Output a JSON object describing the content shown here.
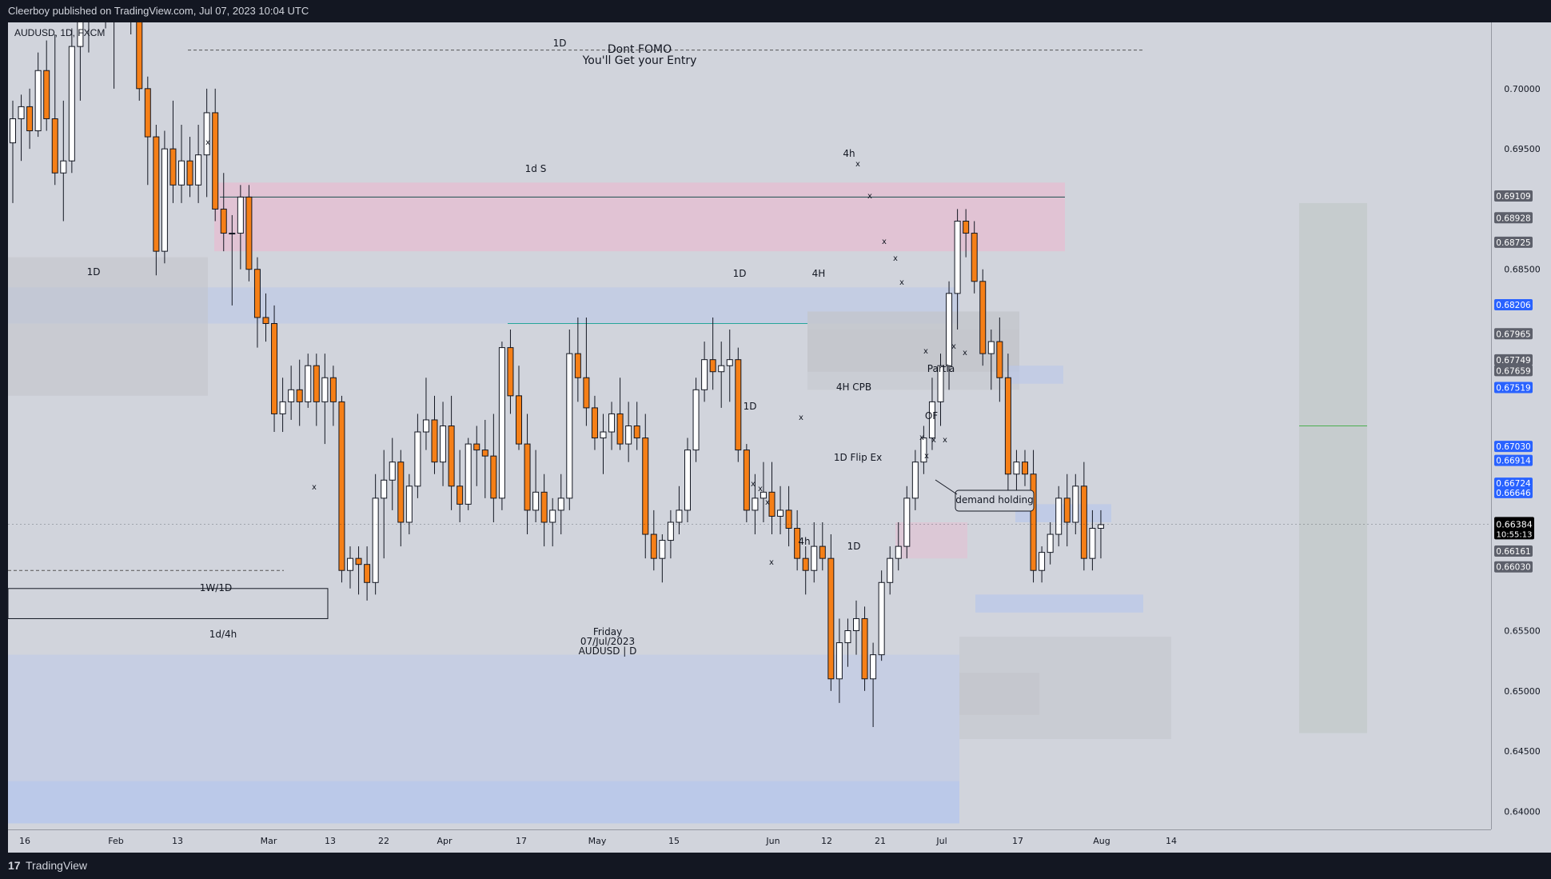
{
  "header": {
    "published": "Cleerboy published on TradingView.com, Jul 07, 2023 10:04 UTC"
  },
  "symbol_line": "AUDUSD, 1D, FXCM",
  "footer": {
    "logo": "17",
    "brand": "TradingView"
  },
  "colors": {
    "background": "#d1d4dc",
    "bull": "#ffffff",
    "bear": "#f57f17",
    "wick": "#131722",
    "supply_zone": "#e8bcd0",
    "demand_zone": "#b9c7ea",
    "gray_zone": "#c3c5cc",
    "current_price": "#000000",
    "blue_label": "#2962ff",
    "dark_label": "#5d606b"
  },
  "annotations": {
    "dont_fomo": "Dont FOMO",
    "entry": "You'll Get your Entry",
    "d1_top": "1D",
    "supply_1ds": "1d S",
    "h4_top": "4h",
    "d1_left": "1D",
    "d1_mid": "1D",
    "h4_mid": "4H",
    "h4_cpb": "4H CPB",
    "d1_may": "1D",
    "flip_ex": "1D Flip Ex",
    "demand_holding": "demand holding",
    "h4_low": "4h",
    "d1_low": "1D",
    "w1d1": "1W/1D",
    "d1h4": "1d/4h",
    "partial": "Partia",
    "of": "OF",
    "x": "x",
    "date_tooltip_line1": "Friday",
    "date_tooltip_line2": "07/Jul/2023",
    "date_tooltip_line3": "AUDUSD | D"
  },
  "price_scale": {
    "ticks": [
      "0.70000",
      "0.69500",
      "0.68500",
      "0.65500",
      "0.65000",
      "0.64500",
      "0.64000"
    ],
    "labels": [
      {
        "value": "0.69109",
        "style": "dark"
      },
      {
        "value": "0.68928",
        "style": "dark"
      },
      {
        "value": "0.68725",
        "style": "dark"
      },
      {
        "value": "0.68206",
        "style": "blue"
      },
      {
        "value": "0.67965",
        "style": "dark"
      },
      {
        "value": "0.67749",
        "style": "dark"
      },
      {
        "value": "0.67659",
        "style": "dark"
      },
      {
        "value": "0.67519",
        "style": "blue"
      },
      {
        "value": "0.67030",
        "style": "blue"
      },
      {
        "value": "0.66914",
        "style": "blue"
      },
      {
        "value": "0.66724",
        "style": "blue"
      },
      {
        "value": "0.66646",
        "style": "blue"
      },
      {
        "value": "0.66161",
        "style": "dark"
      },
      {
        "value": "0.66030",
        "style": "dark"
      }
    ],
    "current_price": "0.66384",
    "countdown": "10:55:13"
  },
  "time_scale": {
    "labels": [
      "16",
      "Feb",
      "13",
      "Mar",
      "13",
      "22",
      "Apr",
      "17",
      "May",
      "15",
      "Jun",
      "12",
      "21",
      "Jul",
      "17",
      "Aug",
      "14"
    ]
  },
  "chart_data": {
    "type": "candlestick",
    "symbol": "AUDUSD",
    "interval": "1D",
    "ylim": [
      0.6385,
      0.7055
    ],
    "candles": [
      [
        0.6955,
        0.699,
        0.6905,
        0.6975
      ],
      [
        0.6975,
        0.6995,
        0.694,
        0.6985
      ],
      [
        0.6985,
        0.7,
        0.695,
        0.6965
      ],
      [
        0.6965,
        0.703,
        0.696,
        0.7015
      ],
      [
        0.7015,
        0.704,
        0.6965,
        0.6975
      ],
      [
        0.6975,
        0.7045,
        0.692,
        0.693
      ],
      [
        0.693,
        0.699,
        0.689,
        0.694
      ],
      [
        0.694,
        0.705,
        0.693,
        0.7035
      ],
      [
        0.7035,
        0.708,
        0.699,
        0.7065
      ],
      [
        0.7065,
        0.712,
        0.703,
        0.7085
      ],
      [
        0.7085,
        0.713,
        0.707,
        0.7115
      ],
      [
        0.7115,
        0.714,
        0.705,
        0.707
      ],
      [
        0.707,
        0.711,
        0.7,
        0.708
      ],
      [
        0.708,
        0.715,
        0.706,
        0.713
      ],
      [
        0.713,
        0.7155,
        0.7045,
        0.7085
      ],
      [
        0.7085,
        0.709,
        0.699,
        0.7
      ],
      [
        0.7,
        0.701,
        0.692,
        0.696
      ],
      [
        0.696,
        0.697,
        0.6845,
        0.6865
      ],
      [
        0.6865,
        0.6965,
        0.6855,
        0.695
      ],
      [
        0.695,
        0.699,
        0.6905,
        0.692
      ],
      [
        0.692,
        0.697,
        0.6905,
        0.694
      ],
      [
        0.694,
        0.696,
        0.691,
        0.692
      ],
      [
        0.692,
        0.697,
        0.6905,
        0.6945
      ],
      [
        0.6945,
        0.7,
        0.691,
        0.698
      ],
      [
        0.698,
        0.7,
        0.689,
        0.69
      ],
      [
        0.69,
        0.693,
        0.6865,
        0.688
      ],
      [
        0.688,
        0.6895,
        0.682,
        0.688
      ],
      [
        0.688,
        0.692,
        0.685,
        0.691
      ],
      [
        0.691,
        0.692,
        0.684,
        0.685
      ],
      [
        0.685,
        0.686,
        0.6785,
        0.681
      ],
      [
        0.681,
        0.683,
        0.679,
        0.6805
      ],
      [
        0.6805,
        0.682,
        0.6715,
        0.673
      ],
      [
        0.673,
        0.676,
        0.6715,
        0.674
      ],
      [
        0.674,
        0.677,
        0.6725,
        0.675
      ],
      [
        0.675,
        0.6775,
        0.672,
        0.674
      ],
      [
        0.674,
        0.678,
        0.6735,
        0.677
      ],
      [
        0.677,
        0.678,
        0.672,
        0.674
      ],
      [
        0.674,
        0.678,
        0.6705,
        0.676
      ],
      [
        0.676,
        0.677,
        0.672,
        0.674
      ],
      [
        0.674,
        0.6745,
        0.659,
        0.66
      ],
      [
        0.66,
        0.662,
        0.6585,
        0.661
      ],
      [
        0.661,
        0.662,
        0.658,
        0.6605
      ],
      [
        0.6605,
        0.662,
        0.6575,
        0.659
      ],
      [
        0.659,
        0.668,
        0.658,
        0.666
      ],
      [
        0.666,
        0.67,
        0.661,
        0.6675
      ],
      [
        0.6675,
        0.671,
        0.665,
        0.669
      ],
      [
        0.669,
        0.67,
        0.662,
        0.664
      ],
      [
        0.664,
        0.668,
        0.663,
        0.667
      ],
      [
        0.667,
        0.673,
        0.666,
        0.6715
      ],
      [
        0.6715,
        0.676,
        0.67,
        0.6725
      ],
      [
        0.6725,
        0.6745,
        0.668,
        0.669
      ],
      [
        0.669,
        0.674,
        0.667,
        0.672
      ],
      [
        0.672,
        0.6745,
        0.665,
        0.667
      ],
      [
        0.667,
        0.67,
        0.664,
        0.6655
      ],
      [
        0.6655,
        0.671,
        0.665,
        0.6705
      ],
      [
        0.6705,
        0.672,
        0.667,
        0.67
      ],
      [
        0.67,
        0.6725,
        0.666,
        0.6695
      ],
      [
        0.6695,
        0.673,
        0.664,
        0.666
      ],
      [
        0.666,
        0.679,
        0.665,
        0.6785
      ],
      [
        0.6785,
        0.68,
        0.673,
        0.6745
      ],
      [
        0.6745,
        0.677,
        0.67,
        0.6705
      ],
      [
        0.6705,
        0.673,
        0.663,
        0.665
      ],
      [
        0.665,
        0.67,
        0.664,
        0.6665
      ],
      [
        0.6665,
        0.668,
        0.662,
        0.664
      ],
      [
        0.664,
        0.666,
        0.662,
        0.665
      ],
      [
        0.665,
        0.668,
        0.663,
        0.666
      ],
      [
        0.666,
        0.68,
        0.665,
        0.678
      ],
      [
        0.678,
        0.681,
        0.674,
        0.676
      ],
      [
        0.676,
        0.681,
        0.672,
        0.6735
      ],
      [
        0.6735,
        0.6745,
        0.67,
        0.671
      ],
      [
        0.671,
        0.673,
        0.668,
        0.6715
      ],
      [
        0.6715,
        0.674,
        0.67,
        0.673
      ],
      [
        0.673,
        0.676,
        0.67,
        0.6705
      ],
      [
        0.6705,
        0.674,
        0.669,
        0.672
      ],
      [
        0.672,
        0.674,
        0.67,
        0.671
      ],
      [
        0.671,
        0.673,
        0.661,
        0.663
      ],
      [
        0.663,
        0.665,
        0.66,
        0.661
      ],
      [
        0.661,
        0.663,
        0.659,
        0.6625
      ],
      [
        0.6625,
        0.665,
        0.661,
        0.664
      ],
      [
        0.664,
        0.667,
        0.663,
        0.665
      ],
      [
        0.665,
        0.671,
        0.664,
        0.67
      ],
      [
        0.67,
        0.676,
        0.669,
        0.675
      ],
      [
        0.675,
        0.679,
        0.674,
        0.6775
      ],
      [
        0.6775,
        0.681,
        0.675,
        0.6765
      ],
      [
        0.6765,
        0.679,
        0.6735,
        0.677
      ],
      [
        0.677,
        0.68,
        0.674,
        0.6775
      ],
      [
        0.6775,
        0.6785,
        0.669,
        0.67
      ],
      [
        0.67,
        0.6705,
        0.664,
        0.665
      ],
      [
        0.665,
        0.668,
        0.663,
        0.666
      ],
      [
        0.666,
        0.669,
        0.664,
        0.6665
      ],
      [
        0.6665,
        0.669,
        0.663,
        0.6645
      ],
      [
        0.6645,
        0.667,
        0.663,
        0.665
      ],
      [
        0.665,
        0.667,
        0.662,
        0.6635
      ],
      [
        0.6635,
        0.665,
        0.66,
        0.661
      ],
      [
        0.661,
        0.662,
        0.658,
        0.66
      ],
      [
        0.66,
        0.664,
        0.659,
        0.662
      ],
      [
        0.662,
        0.664,
        0.66,
        0.661
      ],
      [
        0.661,
        0.663,
        0.65,
        0.651
      ],
      [
        0.651,
        0.656,
        0.649,
        0.654
      ],
      [
        0.654,
        0.656,
        0.652,
        0.655
      ],
      [
        0.655,
        0.6575,
        0.653,
        0.656
      ],
      [
        0.656,
        0.657,
        0.65,
        0.651
      ],
      [
        0.651,
        0.654,
        0.647,
        0.653
      ],
      [
        0.653,
        0.66,
        0.6525,
        0.659
      ],
      [
        0.659,
        0.662,
        0.658,
        0.661
      ],
      [
        0.661,
        0.664,
        0.66,
        0.662
      ],
      [
        0.662,
        0.667,
        0.661,
        0.666
      ],
      [
        0.666,
        0.67,
        0.665,
        0.669
      ],
      [
        0.669,
        0.672,
        0.668,
        0.671
      ],
      [
        0.671,
        0.676,
        0.67,
        0.674
      ],
      [
        0.674,
        0.678,
        0.672,
        0.677
      ],
      [
        0.677,
        0.684,
        0.675,
        0.683
      ],
      [
        0.683,
        0.69,
        0.68,
        0.689
      ],
      [
        0.689,
        0.69,
        0.686,
        0.688
      ],
      [
        0.688,
        0.689,
        0.683,
        0.684
      ],
      [
        0.684,
        0.685,
        0.677,
        0.678
      ],
      [
        0.678,
        0.68,
        0.675,
        0.679
      ],
      [
        0.679,
        0.681,
        0.674,
        0.676
      ],
      [
        0.676,
        0.678,
        0.666,
        0.668
      ],
      [
        0.668,
        0.67,
        0.666,
        0.669
      ],
      [
        0.669,
        0.67,
        0.667,
        0.668
      ],
      [
        0.668,
        0.67,
        0.659,
        0.66
      ],
      [
        0.66,
        0.662,
        0.659,
        0.6615
      ],
      [
        0.6615,
        0.664,
        0.6605,
        0.663
      ],
      [
        0.663,
        0.667,
        0.662,
        0.666
      ],
      [
        0.666,
        0.668,
        0.662,
        0.664
      ],
      [
        0.664,
        0.668,
        0.663,
        0.667
      ],
      [
        0.667,
        0.669,
        0.66,
        0.661
      ],
      [
        0.661,
        0.665,
        0.66,
        0.6635
      ],
      [
        0.6635,
        0.665,
        0.661,
        0.6638
      ]
    ]
  }
}
